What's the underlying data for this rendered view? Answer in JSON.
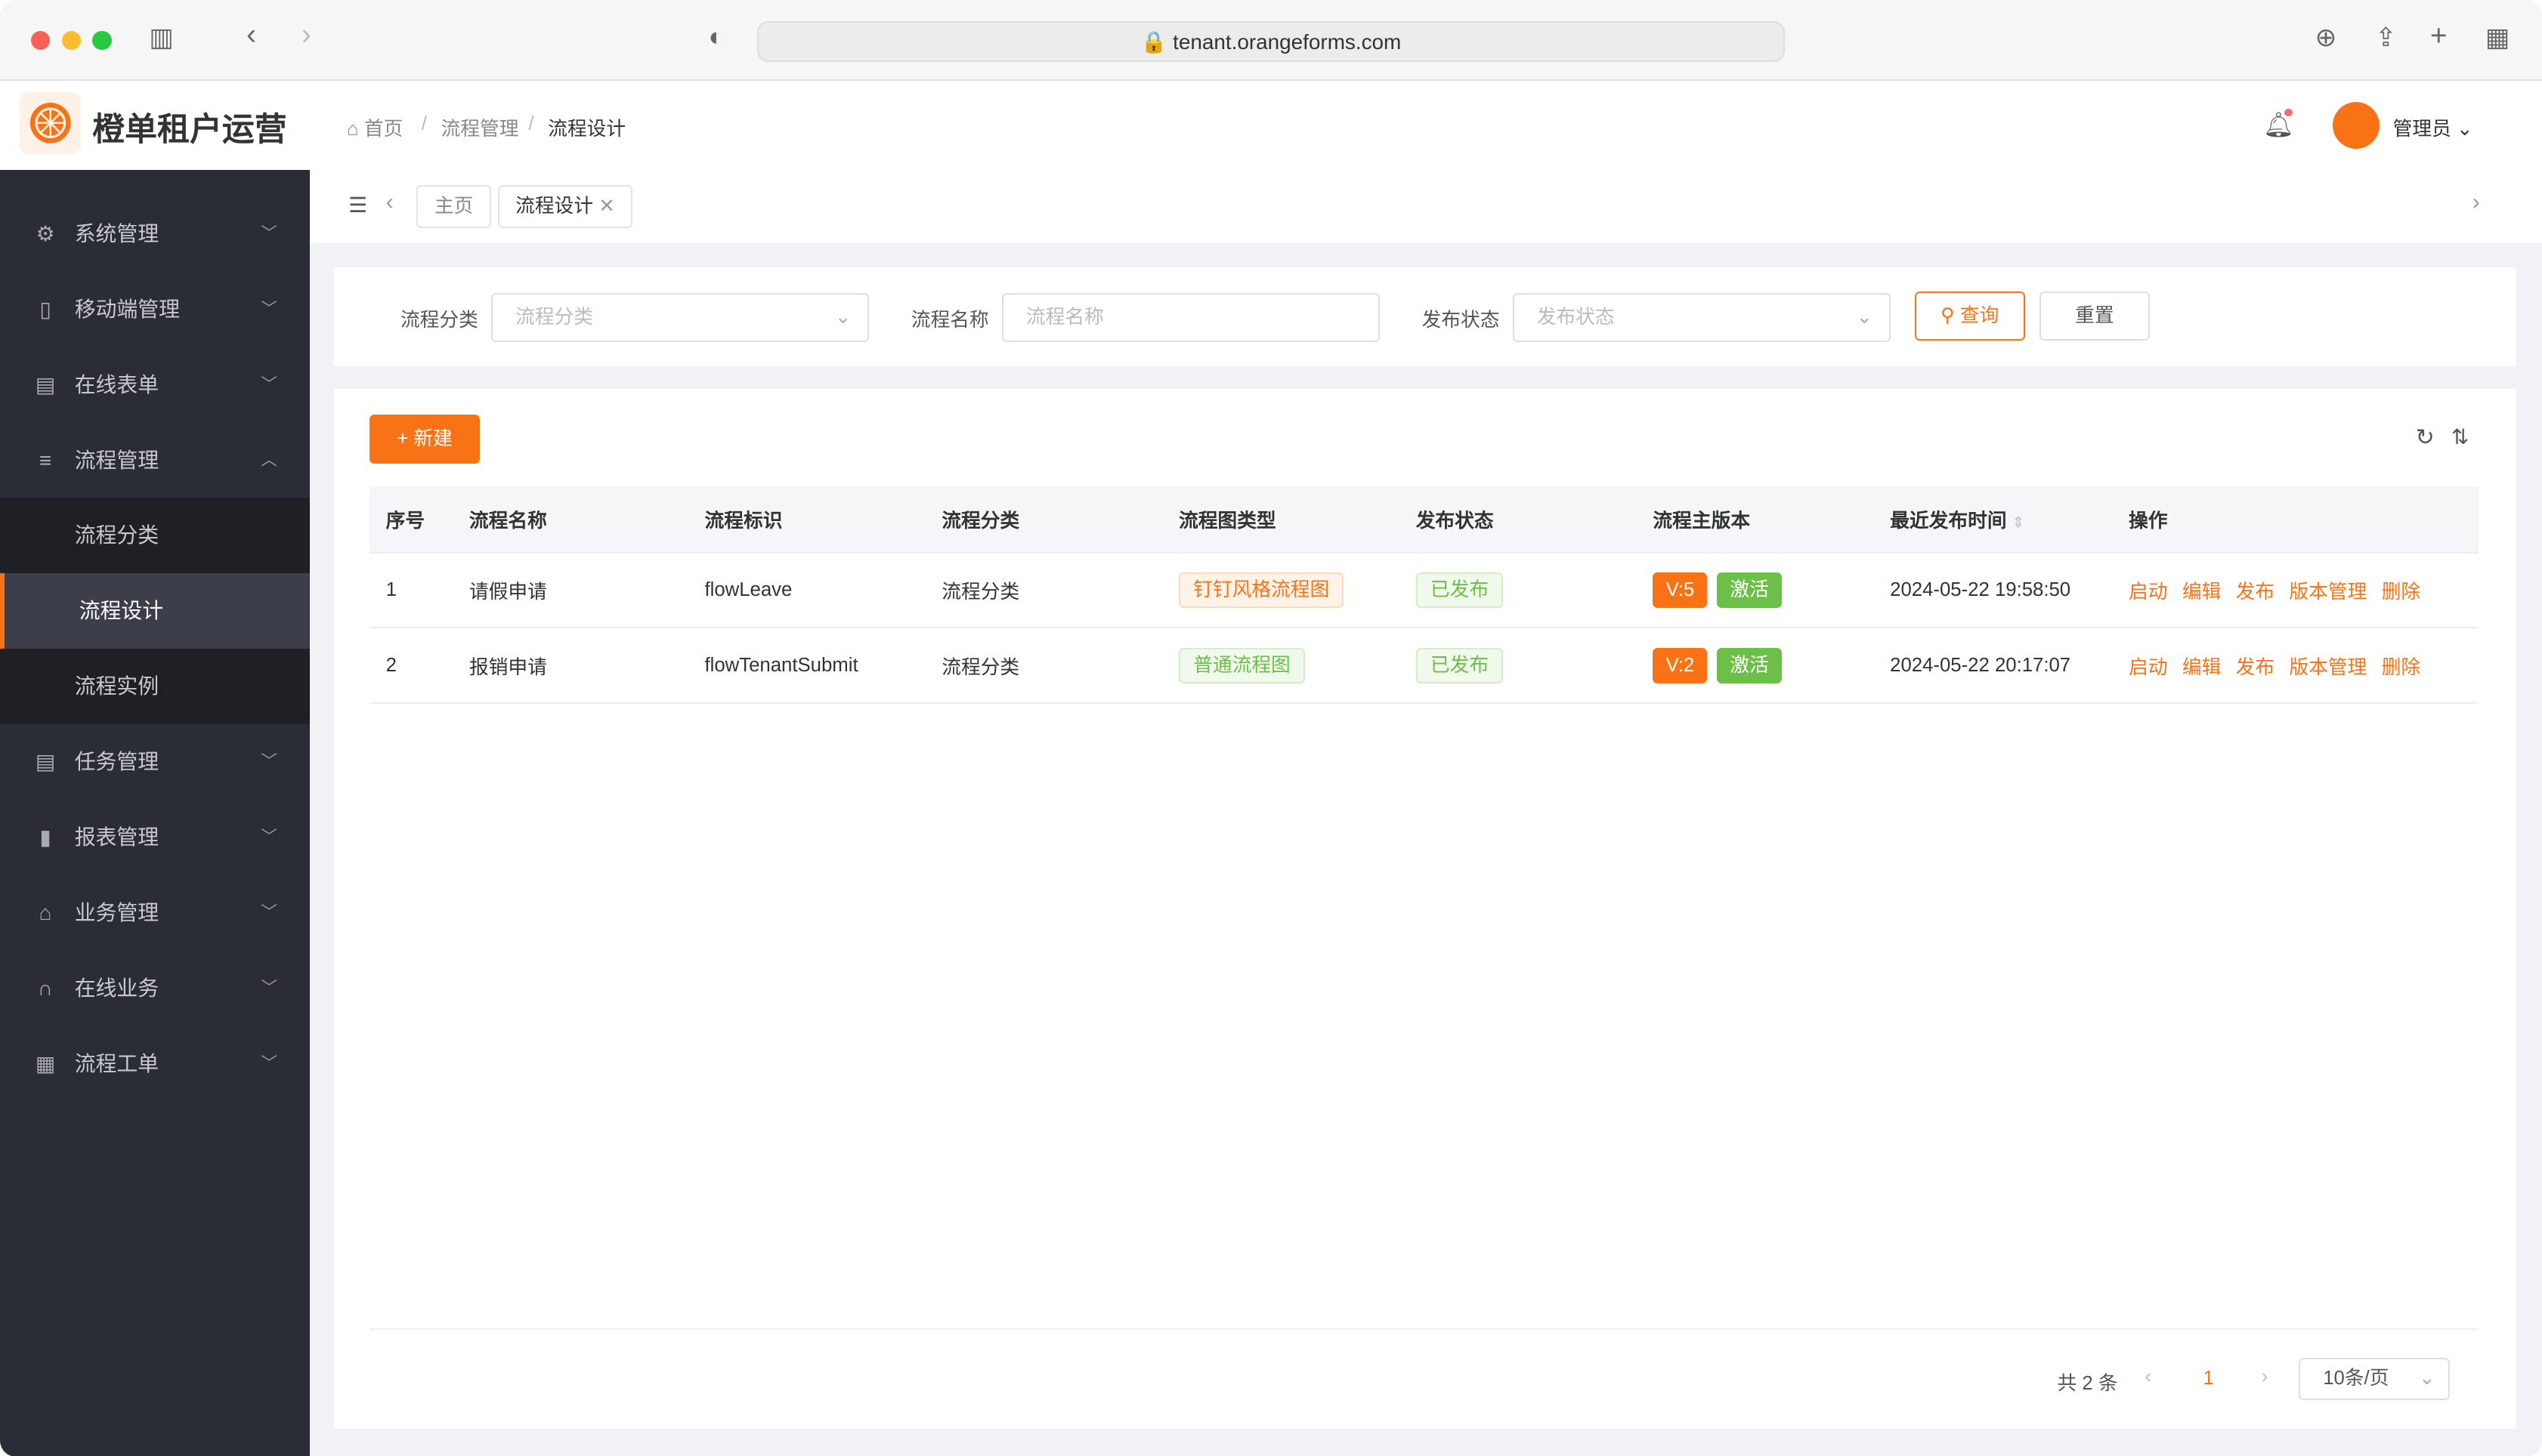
{
  "browser": {
    "url": "tenant.orangeforms.com"
  },
  "app": {
    "title": "橙单租户运营",
    "user": "管理员"
  },
  "breadcrumb": [
    "首页",
    "流程管理",
    "流程设计"
  ],
  "sidebar": {
    "items": [
      {
        "label": "系统管理",
        "icon": "gear-icon"
      },
      {
        "label": "移动端管理",
        "icon": "phone-icon"
      },
      {
        "label": "在线表单",
        "icon": "form-icon"
      },
      {
        "label": "流程管理",
        "icon": "sliders-icon",
        "expanded": true
      },
      {
        "label": "流程分类",
        "sub": true
      },
      {
        "label": "流程设计",
        "sub": true,
        "active": true
      },
      {
        "label": "流程实例",
        "sub": true
      },
      {
        "label": "任务管理",
        "icon": "task-icon"
      },
      {
        "label": "报表管理",
        "icon": "bar-chart-icon"
      },
      {
        "label": "业务管理",
        "icon": "bag-icon"
      },
      {
        "label": "在线业务",
        "icon": "headset-icon"
      },
      {
        "label": "流程工单",
        "icon": "grid-icon"
      }
    ]
  },
  "tabs": [
    {
      "label": "主页"
    },
    {
      "label": "流程设计",
      "active": true
    }
  ],
  "filter": {
    "category_label": "流程分类",
    "category_placeholder": "流程分类",
    "name_label": "流程名称",
    "name_placeholder": "流程名称",
    "status_label": "发布状态",
    "status_placeholder": "发布状态",
    "query": "查询",
    "reset": "重置"
  },
  "toolbar": {
    "new": "新建"
  },
  "table": {
    "columns": [
      "序号",
      "流程名称",
      "流程标识",
      "流程分类",
      "流程图类型",
      "发布状态",
      "流程主版本",
      "最近发布时间",
      "操作"
    ],
    "rows": [
      {
        "no": "1",
        "name": "请假申请",
        "key": "flowLeave",
        "category": "流程分类",
        "type": "钉钉风格流程图",
        "status": "已发布",
        "version": "V:5",
        "active": "激活",
        "time": "2024-05-22 19:58:50"
      },
      {
        "no": "2",
        "name": "报销申请",
        "key": "flowTenantSubmit",
        "category": "流程分类",
        "type": "普通流程图",
        "status": "已发布",
        "version": "V:2",
        "active": "激活",
        "time": "2024-05-22 20:17:07"
      }
    ],
    "actions": [
      "启动",
      "编辑",
      "发布",
      "版本管理",
      "删除"
    ]
  },
  "pagination": {
    "total": "共 2 条",
    "page": "1",
    "page_size": "10条/页"
  },
  "colors": {
    "accent": "#f97316",
    "success": "#6cc04a",
    "sidebar": "#2b2d36"
  }
}
